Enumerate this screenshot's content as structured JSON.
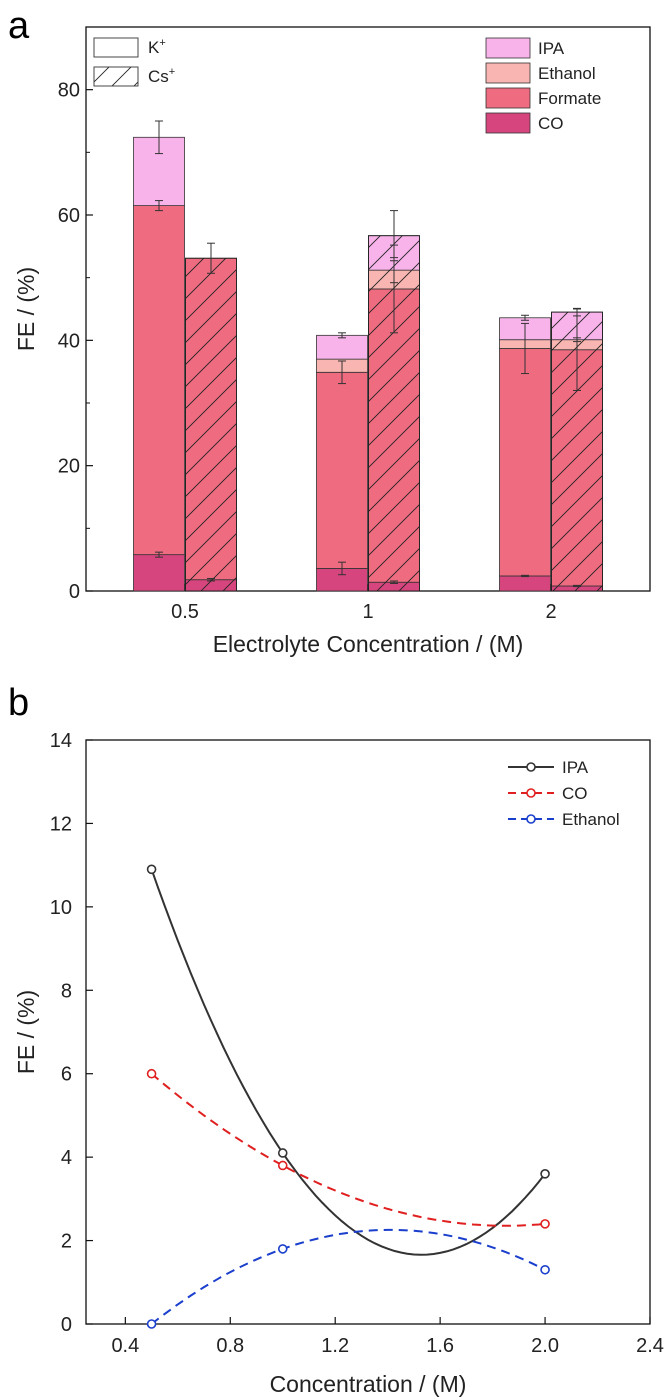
{
  "panels": {
    "a_letter": "a",
    "b_letter": "b"
  },
  "chart_data": [
    {
      "type": "bar",
      "stacked": true,
      "grouped_by": [
        "K+",
        "Cs+"
      ],
      "categories": [
        "0.5",
        "1",
        "2"
      ],
      "xlabel": "Electrolyte Concentration / (M)",
      "ylabel": "FE / (%)",
      "ylim": [
        0,
        90
      ],
      "yticks": [
        "0",
        "20",
        "40",
        "60",
        "80"
      ],
      "group_legend": [
        {
          "name": "K",
          "sup": "+",
          "pattern": "plain"
        },
        {
          "name": "Cs",
          "sup": "+",
          "pattern": "hatched"
        }
      ],
      "series": [
        {
          "name": "CO",
          "color": "#d6457e",
          "values": {
            "K+": [
              5.8,
              3.6,
              2.4
            ],
            "Cs+": [
              1.8,
              1.4,
              0.8
            ]
          },
          "err": {
            "K+": [
              0.4,
              1.0,
              0.1
            ],
            "Cs+": [
              0.2,
              0.2,
              0.1
            ]
          }
        },
        {
          "name": "Formate",
          "color": "#ee6b80",
          "values": {
            "K+": [
              55.7,
              31.3,
              36.3
            ],
            "Cs+": [
              51.3,
              46.8,
              37.7
            ]
          },
          "err": {
            "K+": [
              0.8,
              1.8,
              4.0
            ],
            "Cs+": [
              2.4,
              7.0,
              6.5
            ]
          }
        },
        {
          "name": "Ethanol",
          "color": "#f9b5b1",
          "values": {
            "K+": [
              0.0,
              2.1,
              1.4
            ],
            "Cs+": [
              0.0,
              3.0,
              1.6
            ]
          },
          "err": {
            "K+": [
              0.0,
              0.0,
              0.0
            ],
            "Cs+": [
              0.0,
              2.0,
              0.3
            ]
          }
        },
        {
          "name": "IPA",
          "color": "#f8b4ea",
          "values": {
            "K+": [
              10.9,
              3.8,
              3.5
            ],
            "Cs+": [
              0.0,
              5.5,
              4.4
            ]
          },
          "err": {
            "K+": [
              2.6,
              0.4,
              0.4
            ],
            "Cs+": [
              0.0,
              4.0,
              0.6
            ]
          }
        }
      ],
      "legend_order": [
        "IPA",
        "Ethanol",
        "Formate",
        "CO"
      ],
      "legend_position": "top-right"
    },
    {
      "type": "line",
      "xlabel": "Concentration / (M)",
      "ylabel": "FE / (%)",
      "xlim": [
        0.25,
        2.4
      ],
      "ylim": [
        0,
        14
      ],
      "xticks": [
        "0.4",
        "0.8",
        "1.2",
        "1.6",
        "2.0",
        "2.4"
      ],
      "yticks": [
        "0",
        "2",
        "4",
        "6",
        "8",
        "10",
        "12",
        "14"
      ],
      "legend_position": "top-right",
      "series": [
        {
          "name": "IPA",
          "color": "#333333",
          "dash": "solid",
          "x": [
            0.5,
            1.0,
            2.0
          ],
          "y": [
            10.9,
            4.1,
            3.6
          ]
        },
        {
          "name": "CO",
          "color": "#e02020",
          "dash": "dashed",
          "x": [
            0.5,
            1.0,
            2.0
          ],
          "y": [
            6.0,
            3.8,
            2.4
          ]
        },
        {
          "name": "Ethanol",
          "color": "#1a3fcc",
          "dash": "dashed",
          "x": [
            0.5,
            1.0,
            2.0
          ],
          "y": [
            0.0,
            1.8,
            1.3
          ]
        }
      ]
    }
  ]
}
